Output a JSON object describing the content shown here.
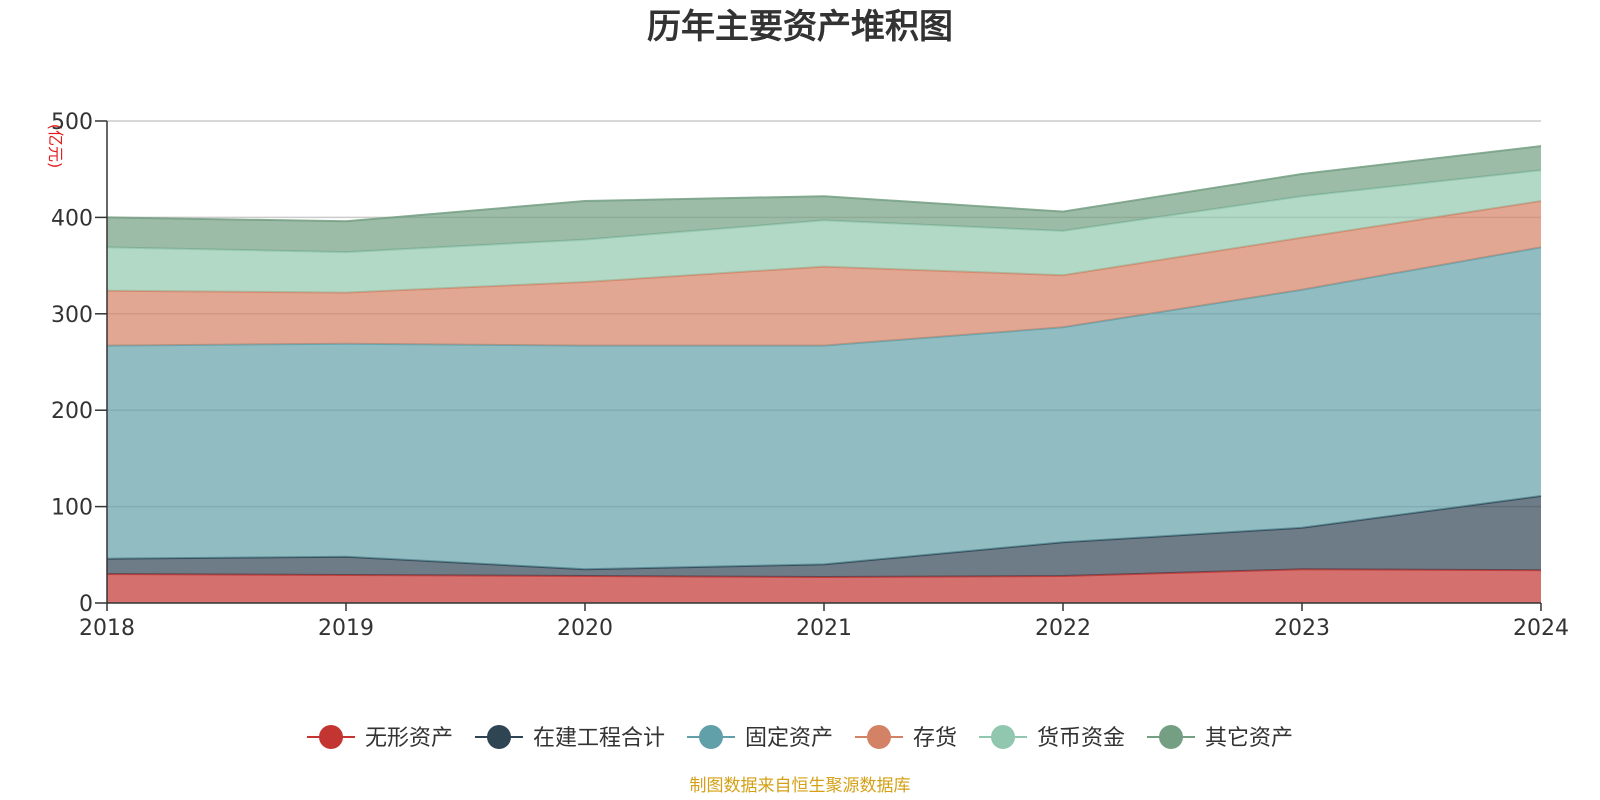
{
  "chart_data": {
    "type": "area",
    "stacked": true,
    "title": "历年主要资产堆积图",
    "ylabel": "(亿元)",
    "xlabel": "",
    "categories": [
      "2018",
      "2019",
      "2020",
      "2021",
      "2022",
      "2023",
      "2024"
    ],
    "ylim": [
      0,
      500
    ],
    "yticks": [
      0,
      100,
      200,
      300,
      400,
      500
    ],
    "grid": true,
    "legend_position": "bottom",
    "series": [
      {
        "name": "无形资产",
        "color": "#c23531",
        "values": [
          30,
          29,
          28,
          27,
          28,
          35,
          34
        ]
      },
      {
        "name": "在建工程合计",
        "color": "#2f4554",
        "values": [
          16,
          19,
          7,
          13,
          35,
          43,
          77
        ]
      },
      {
        "name": "固定资产",
        "color": "#61a0a8",
        "values": [
          221,
          221,
          232,
          227,
          223,
          247,
          258
        ]
      },
      {
        "name": "存货",
        "color": "#d48265",
        "values": [
          57,
          53,
          66,
          82,
          54,
          54,
          48
        ]
      },
      {
        "name": "货币资金",
        "color": "#91c7ae",
        "values": [
          45,
          42,
          44,
          48,
          46,
          43,
          32
        ]
      },
      {
        "name": "其它资产",
        "color": "#749f83",
        "values": [
          31,
          32,
          40,
          25,
          20,
          23,
          25
        ]
      }
    ]
  },
  "footer": {
    "source_text": "制图数据来自恒生聚源数据库",
    "source_color": "#d4a017"
  }
}
